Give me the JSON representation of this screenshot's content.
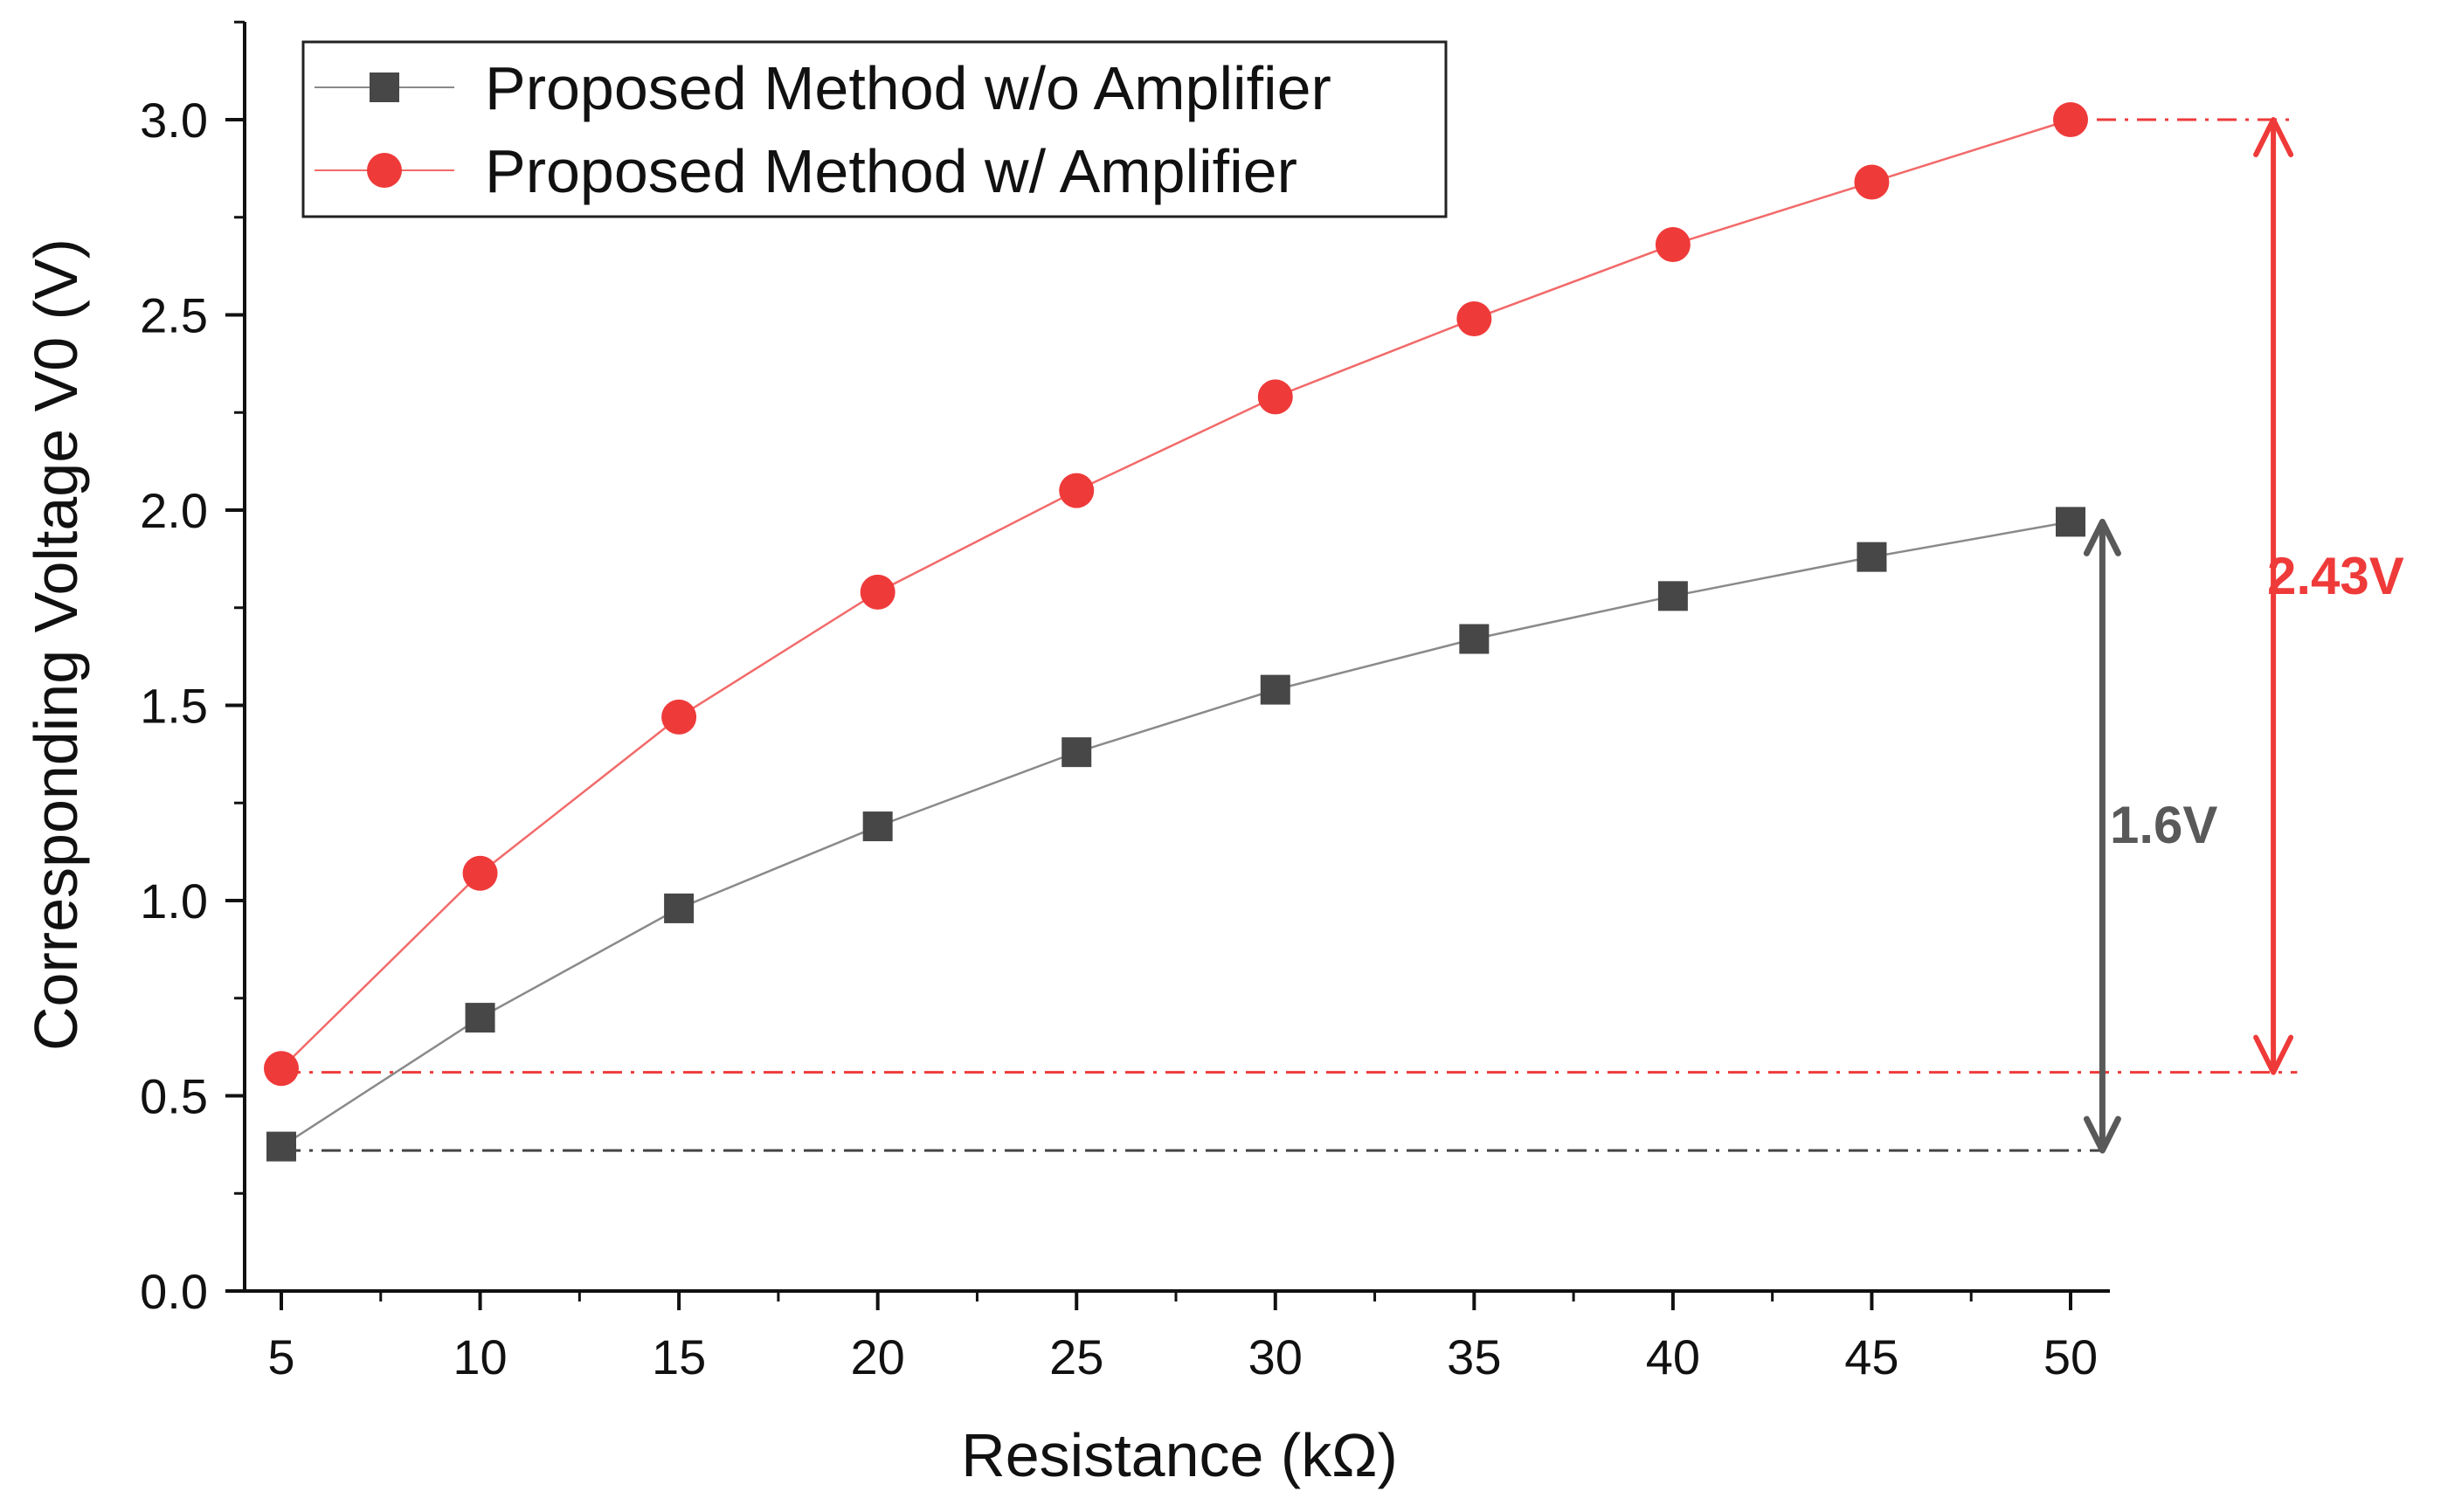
{
  "chart_data": {
    "type": "line",
    "title": "",
    "xlabel": "Resistance (kΩ)",
    "ylabel": "Corresponding Voltage V0 (V)",
    "xlim": [
      4,
      51
    ],
    "ylim": [
      0,
      3.25
    ],
    "xticks": [
      5,
      10,
      15,
      20,
      25,
      30,
      35,
      40,
      45,
      50
    ],
    "xtick_labels": [
      "5",
      "10",
      "15",
      "20",
      "25",
      "30",
      "35",
      "40",
      "45",
      "50"
    ],
    "yticks": [
      0.0,
      0.5,
      1.0,
      1.5,
      2.0,
      2.5,
      3.0
    ],
    "ytick_labels": [
      "0.0",
      "0.5",
      "1.0",
      "1.5",
      "2.0",
      "2.5",
      "3.0"
    ],
    "x": [
      5,
      10,
      15,
      20,
      25,
      30,
      35,
      40,
      45,
      50
    ],
    "series": [
      {
        "name": "Proposed Method w/o Amplifier",
        "marker": "square",
        "color": "#474747",
        "line_color": "#8a8a8a",
        "values": [
          0.37,
          0.7,
          0.98,
          1.19,
          1.38,
          1.54,
          1.67,
          1.78,
          1.88,
          1.97
        ]
      },
      {
        "name": "Proposed Method w/ Amplifier",
        "marker": "circle",
        "color": "#ef3a3a",
        "line_color": "#f26a6a",
        "values": [
          0.57,
          1.07,
          1.47,
          1.79,
          2.05,
          2.29,
          2.49,
          2.68,
          2.84,
          3.0
        ]
      }
    ],
    "legend_position": "top-left",
    "grid": false,
    "annotations": [
      {
        "text": "1.6V",
        "color": "#595959",
        "type": "double-arrow",
        "x": 50.8,
        "from": 0.36,
        "to": 1.97,
        "ref_line_from_x": 5,
        "ref_line_to_x": 50.8
      },
      {
        "text": "2.43V",
        "color": "#ef3a3a",
        "type": "double-arrow",
        "x": 55.1,
        "from": 0.56,
        "to": 3.0,
        "ref_line_from_x": 5,
        "ref_line_to_x": 55.7
      }
    ]
  }
}
